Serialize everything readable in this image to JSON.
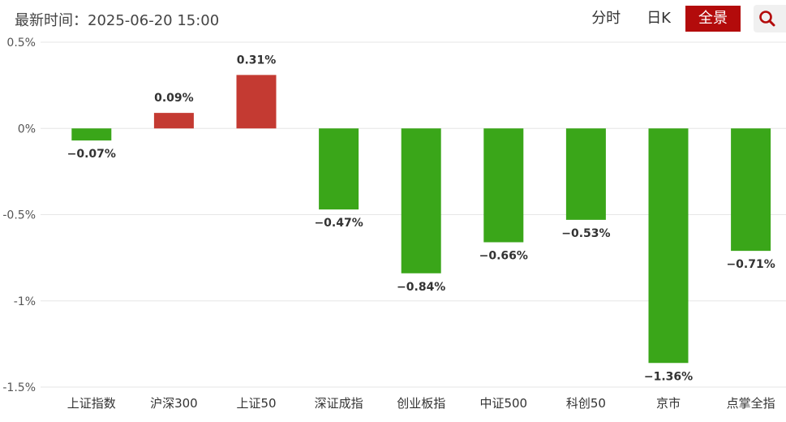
{
  "header": {
    "update_time": "最新时间：2025-06-20 15:00",
    "tabs": [
      {
        "label": "分时",
        "active": false
      },
      {
        "label": "日K",
        "active": false
      },
      {
        "label": "全景",
        "active": true
      }
    ],
    "search_icon": "search-icon"
  },
  "colors": {
    "up": "#c43a32",
    "down": "#3aa619",
    "accent": "#b30b0b",
    "grid": "#e6e6e6"
  },
  "chart_data": {
    "type": "bar",
    "categories": [
      "上证指数",
      "沪深300",
      "上证50",
      "深证成指",
      "创业板指",
      "中证500",
      "科创50",
      "京市",
      "点掌全指"
    ],
    "values": [
      -0.07,
      0.09,
      0.31,
      -0.47,
      -0.84,
      -0.66,
      -0.53,
      -1.36,
      -0.71
    ],
    "data_labels": [
      "−0.07%",
      "0.09%",
      "0.31%",
      "−0.47%",
      "−0.84%",
      "−0.66%",
      "−0.53%",
      "−1.36%",
      "−0.71%"
    ],
    "yticks": [
      0.5,
      0,
      -0.5,
      -1,
      -1.5
    ],
    "ytick_labels": [
      "0.5%",
      "0%",
      "-0.5%",
      "-1%",
      "-1.5%"
    ],
    "ylim": [
      -1.5,
      0.5
    ],
    "grid": true,
    "title": "",
    "xlabel": "",
    "ylabel": ""
  }
}
